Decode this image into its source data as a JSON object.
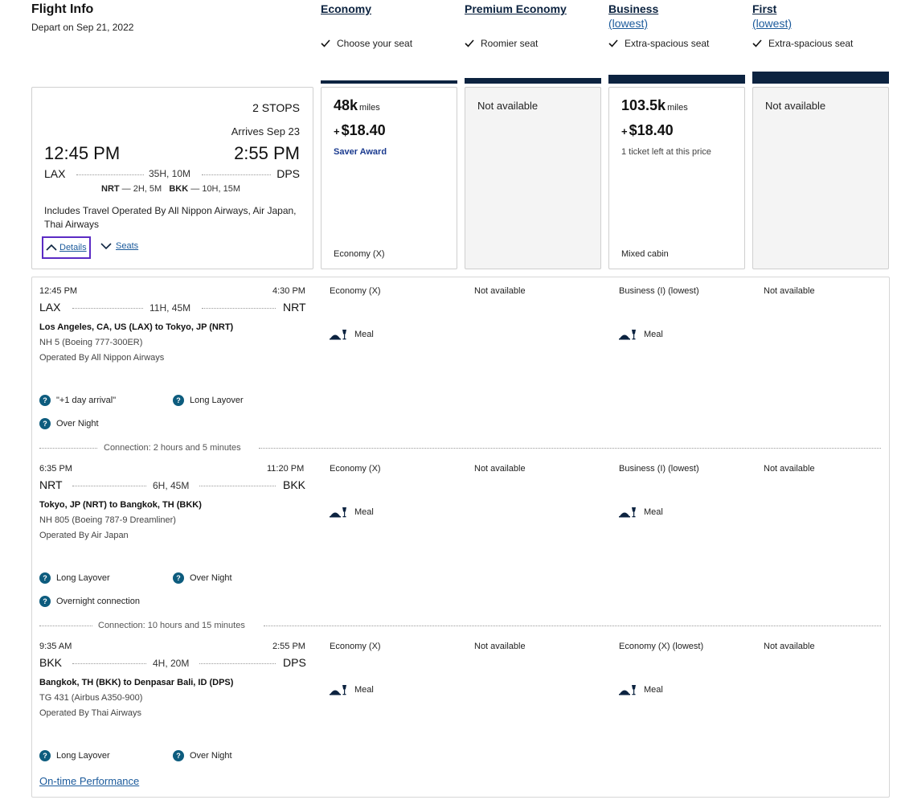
{
  "header": {
    "title": "Flight Info",
    "depart": "Depart on Sep 21, 2022"
  },
  "cabins": [
    {
      "name": "Economy",
      "sub": "",
      "feature": "Choose your seat"
    },
    {
      "name": "Premium Economy",
      "sub": "",
      "feature": "Roomier seat"
    },
    {
      "name": "Business",
      "sub": "(lowest)",
      "feature": "Extra-spacious seat"
    },
    {
      "name": "First",
      "sub": "(lowest)",
      "feature": "Extra-spacious seat"
    }
  ],
  "summary": {
    "stops": "2 STOPS",
    "arrives": "Arrives Sep 23",
    "depart_time": "12:45 PM",
    "arrive_time": "2:55 PM",
    "origin": "LAX",
    "destination": "DPS",
    "duration": "35H, 10M",
    "stop1_code": "NRT",
    "stop1_time": "— 2H, 5M",
    "stop2_code": "BKK",
    "stop2_time": "— 10H, 15M",
    "includes": "Includes Travel Operated By All Nippon Airways, Air Japan, Thai Airways",
    "details_label": "Details",
    "seats_label": "Seats"
  },
  "prices": [
    {
      "miles": "48k",
      "miles_unit": "miles",
      "fee": "$18.40",
      "note": "Saver Award",
      "cabin": "Economy (X)"
    },
    {
      "na": "Not available"
    },
    {
      "miles": "103.5k",
      "miles_unit": "miles",
      "fee": "$18.40",
      "note": "1 ticket left at this price",
      "cabin": "Mixed cabin"
    },
    {
      "na": "Not available"
    }
  ],
  "segments": [
    {
      "depart_time": "12:45 PM",
      "arrive_time": "4:30 PM",
      "from": "LAX",
      "to": "NRT",
      "duration": "11H, 45M",
      "route": "Los Angeles, CA, US (LAX) to Tokyo, JP (NRT)",
      "flight": "NH 5 (Boeing 777-300ER)",
      "operated": "Operated By All Nippon Airways",
      "economy": "Economy (X)",
      "premium": "Not available",
      "business": "Business (I) (lowest)",
      "first": "Not available",
      "meal": "Meal",
      "tags": [
        "\"+1 day arrival\"",
        "Long Layover",
        "Over Night"
      ]
    },
    {
      "depart_time": "6:35 PM",
      "arrive_time": "11:20 PM",
      "from": "NRT",
      "to": "BKK",
      "duration": "6H, 45M",
      "route": "Tokyo, JP (NRT) to Bangkok, TH (BKK)",
      "flight": "NH 805 (Boeing 787-9 Dreamliner)",
      "operated": "Operated By Air Japan",
      "economy": "Economy (X)",
      "premium": "Not available",
      "business": "Business (I) (lowest)",
      "first": "Not available",
      "meal": "Meal",
      "tags": [
        "Long Layover",
        "Over Night",
        "Overnight connection"
      ]
    },
    {
      "depart_time": "9:35 AM",
      "arrive_time": "2:55 PM",
      "from": "BKK",
      "to": "DPS",
      "duration": "4H, 20M",
      "route": "Bangkok, TH (BKK) to Denpasar Bali, ID (DPS)",
      "flight": "TG 431 (Airbus A350-900)",
      "operated": "Operated By Thai Airways",
      "economy": "Economy (X)",
      "premium": "Not available",
      "business": "Economy (X) (lowest)",
      "first": "Not available",
      "meal": "Meal",
      "tags": [
        "Long Layover",
        "Over Night"
      ]
    }
  ],
  "connections": [
    "Connection: 2 hours and 5 minutes",
    "Connection: 10 hours and 15 minutes"
  ],
  "footer": {
    "on_time": "On-time Performance"
  },
  "colors": {
    "navy": "#0c2340",
    "link": "#1b5a9b",
    "focus": "#5b2bc4",
    "info_icon": "#0d5c7e"
  }
}
